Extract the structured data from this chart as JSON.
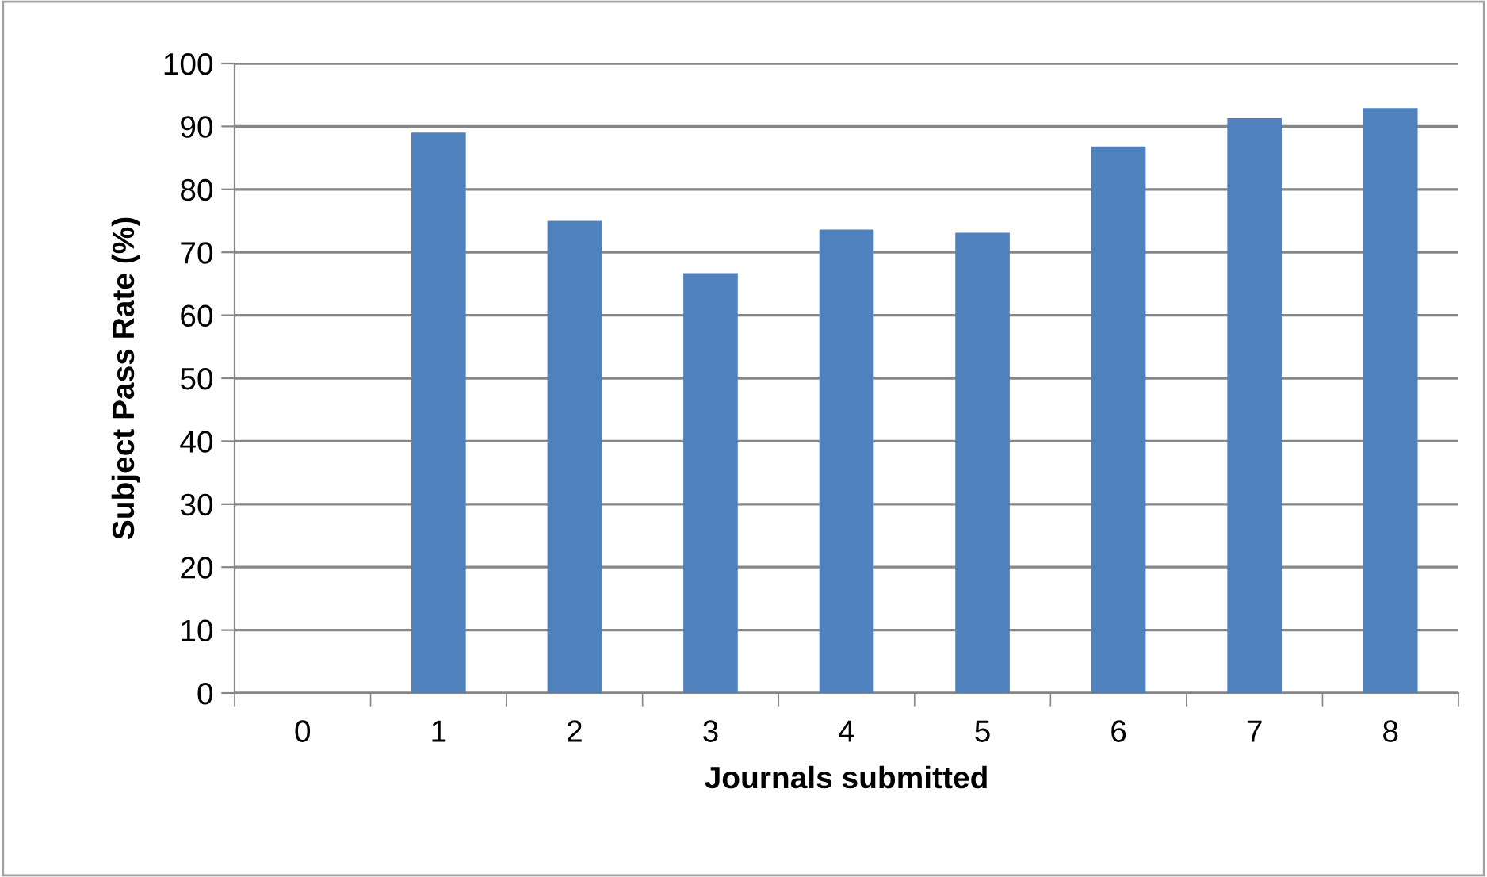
{
  "chart_data": {
    "type": "bar",
    "xlabel": "Journals submitted",
    "ylabel": "Subject Pass Rate (%)",
    "categories": [
      "0",
      "1",
      "2",
      "3",
      "4",
      "5",
      "6",
      "7",
      "8"
    ],
    "values": [
      0,
      89.0,
      75.0,
      66.7,
      73.6,
      73.1,
      86.8,
      91.3,
      92.9
    ],
    "color": "#4f81bd",
    "ylim": [
      0,
      100
    ],
    "yticks": [
      0,
      10,
      20,
      30,
      40,
      50,
      60,
      70,
      80,
      90,
      100
    ],
    "grid": "y"
  }
}
